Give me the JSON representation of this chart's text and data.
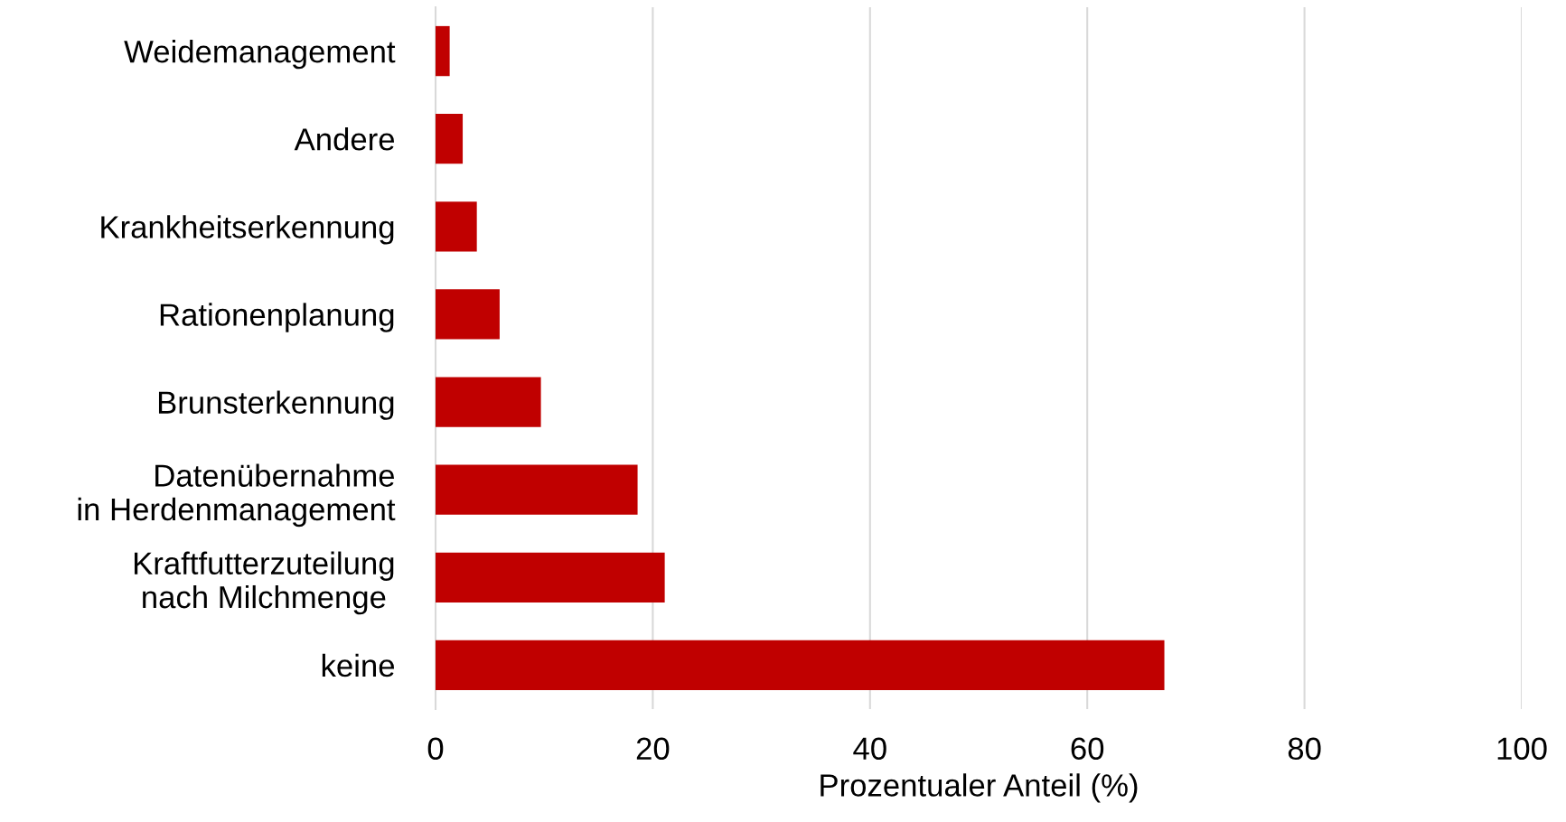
{
  "chart_data": {
    "type": "bar",
    "orientation": "horizontal",
    "xlabel": "Prozentualer Anteil (%)",
    "categories": [
      "Weidemanagement",
      "Andere",
      "Krankheitserkennung",
      "Rationenplanung",
      "Brunsterkennung",
      "Datenübernahme\nin Herdenmanagement",
      "Kraftfutterzuteilung\nnach Milchmenge ",
      "keine"
    ],
    "values": [
      1.3,
      2.5,
      3.8,
      5.9,
      9.7,
      18.6,
      21.1,
      67.1
    ],
    "color": "#c00000",
    "xlim": [
      0,
      100
    ],
    "xticks": [
      0,
      20,
      40,
      60,
      80,
      100
    ],
    "grid": "x",
    "legend": false
  }
}
